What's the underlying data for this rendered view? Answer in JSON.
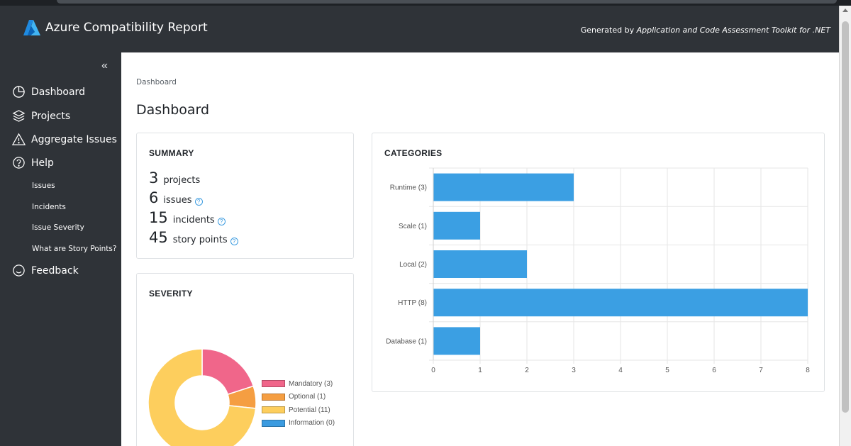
{
  "header": {
    "title": "Azure Compatibility Report",
    "generated_prefix": "Generated by ",
    "generated_tool": "Application and Code Assessment Toolkit for .NET"
  },
  "sidebar": {
    "collapse_glyph": "«",
    "items": [
      {
        "label": "Dashboard",
        "icon": "pie-chart-icon"
      },
      {
        "label": "Projects",
        "icon": "layers-icon"
      },
      {
        "label": "Aggregate Issues",
        "icon": "warning-icon"
      },
      {
        "label": "Help",
        "icon": "question-icon"
      }
    ],
    "help_items": [
      "Issues",
      "Incidents",
      "Issue Severity",
      "What are Story Points?"
    ],
    "feedback": {
      "label": "Feedback",
      "icon": "smiley-icon"
    }
  },
  "main": {
    "breadcrumb": "Dashboard",
    "title": "Dashboard"
  },
  "summary": {
    "title": "SUMMARY",
    "rows": [
      {
        "num": "3",
        "label": "projects",
        "help": false
      },
      {
        "num": "6",
        "label": "issues",
        "help": true
      },
      {
        "num": "15",
        "label": "incidents",
        "help": true
      },
      {
        "num": "45",
        "label": "story points",
        "help": true
      }
    ],
    "help_glyph": "?"
  },
  "severity": {
    "title": "SEVERITY",
    "chart_data": {
      "type": "pie",
      "labels": [
        "Mandatory (3)",
        "Optional (1)",
        "Potential (11)",
        "Information (0)"
      ],
      "values": [
        3,
        1,
        11,
        0
      ],
      "colors": [
        "#f0668a",
        "#f59e42",
        "#fdce5d",
        "#3b9be0"
      ],
      "legend": "right"
    }
  },
  "categories": {
    "title": "CATEGORIES",
    "chart_data": {
      "type": "bar",
      "orientation": "horizontal",
      "categories": [
        "Runtime (3)",
        "Scale (1)",
        "Local (2)",
        "HTTP (8)",
        "Database (1)"
      ],
      "values": [
        3,
        1,
        2,
        8,
        1
      ],
      "xlim": [
        0,
        8
      ],
      "xticks": [
        "0",
        "1",
        "2",
        "3",
        "4",
        "5",
        "6",
        "7",
        "8"
      ],
      "grid": true,
      "color": "#3b9fe3"
    }
  }
}
